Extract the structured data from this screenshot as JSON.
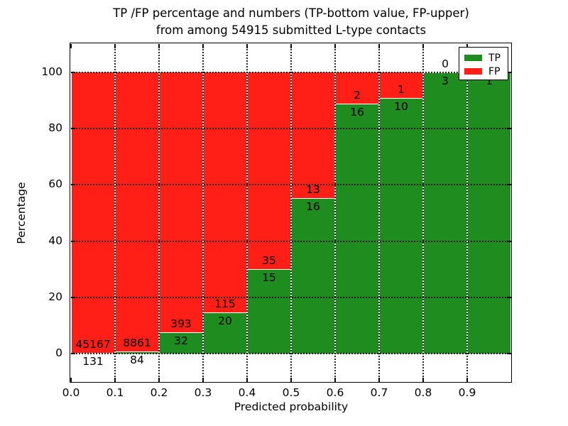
{
  "figure": {
    "title_line1": "TP /FP percentage and numbers (TP-bottom value, FP-upper)",
    "title_line2": "from among 54915 submitted L-type contacts"
  },
  "chart_data": {
    "type": "bar",
    "stacked": true,
    "title": "TP /FP percentage and numbers (TP-bottom value, FP-upper) from among 54915 submitted L-type contacts",
    "total_contacts": 54915,
    "xlabel": "Predicted probability",
    "ylabel": "Percentage",
    "xlim": [
      0.0,
      1.0
    ],
    "ylim": [
      -10,
      110
    ],
    "bin_width": 0.1,
    "grid": true,
    "x_tick_labels": [
      "0.0",
      "0.1",
      "0.2",
      "0.3",
      "0.4",
      "0.5",
      "0.6",
      "0.7",
      "0.8",
      "0.9"
    ],
    "y_tick_values": [
      0,
      20,
      40,
      60,
      80,
      100
    ],
    "y_tick_labels": [
      "0",
      "20",
      "40",
      "60",
      "80",
      "100"
    ],
    "categories": [
      "0.0-0.1",
      "0.1-0.2",
      "0.2-0.3",
      "0.3-0.4",
      "0.4-0.5",
      "0.5-0.6",
      "0.6-0.7",
      "0.7-0.8",
      "0.8-0.9",
      "0.9-1.0"
    ],
    "series": [
      {
        "name": "TP",
        "color": "#1e8c1e",
        "counts": [
          131,
          84,
          32,
          20,
          15,
          16,
          16,
          10,
          3,
          1
        ],
        "pct": [
          0.289,
          0.939,
          7.529,
          14.815,
          30.0,
          55.172,
          88.889,
          90.909,
          100.0,
          100.0
        ]
      },
      {
        "name": "FP",
        "color": "#ff1f16",
        "counts": [
          45167,
          8861,
          393,
          115,
          35,
          13,
          2,
          1,
          0,
          0
        ],
        "pct": [
          99.711,
          99.061,
          92.471,
          85.185,
          70.0,
          44.828,
          11.111,
          9.091,
          0.0,
          0.0
        ]
      }
    ],
    "legend": {
      "position": "upper right",
      "entries": [
        "TP",
        "FP"
      ]
    }
  }
}
